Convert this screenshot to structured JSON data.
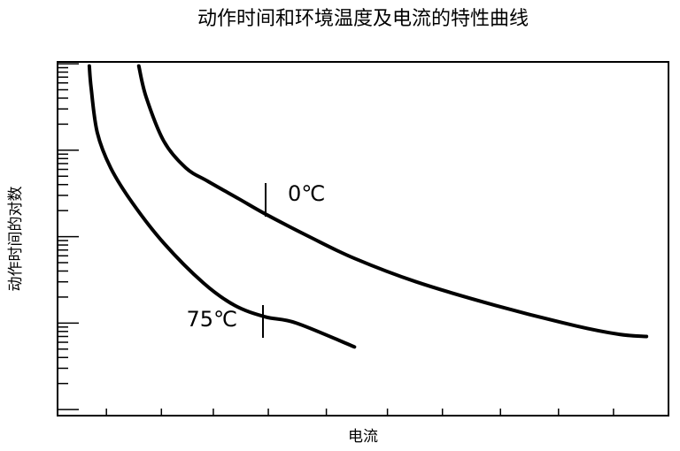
{
  "chart_data": {
    "type": "line",
    "title": "动作时间和环境温度及电流的特性曲线",
    "x_label": "电流",
    "y_label": "动作时间的对数",
    "xlim": [
      0,
      100
    ],
    "ylim": [
      0.85,
      10500
    ],
    "y_scale": "log",
    "xticks": [
      8,
      17,
      25.5,
      34.5,
      44,
      54,
      63,
      72.5,
      82,
      91
    ],
    "yticks": [
      1,
      2,
      3,
      4,
      5,
      6,
      7,
      8,
      9,
      10,
      20,
      30,
      40,
      50,
      60,
      70,
      80,
      90,
      100,
      200,
      300,
      400,
      500,
      600,
      700,
      800,
      900,
      1000,
      2000,
      3000,
      4000,
      5000,
      6000,
      7000,
      8000,
      9000,
      10000
    ],
    "series": [
      {
        "name": "0℃",
        "color": "#000000",
        "x": [
          13.3,
          14.5,
          17.4,
          21,
          24.6,
          29.7,
          34,
          41.3,
          48.6,
          58.7,
          71.7,
          84.8,
          92,
          96.4
        ],
        "values": [
          9420,
          4120,
          1270,
          624,
          437,
          273,
          183,
          99,
          56,
          30,
          16,
          9.3,
          7.4,
          7.0
        ]
      },
      {
        "name": "75℃",
        "color": "#000000",
        "x": [
          5.2,
          5.5,
          6.5,
          8.7,
          12.3,
          17.4,
          23.9,
          29,
          34,
          39.1,
          48.6
        ],
        "values": [
          9420,
          5220,
          1600,
          624,
          243,
          84,
          29,
          16,
          11.8,
          10,
          5.3
        ]
      }
    ]
  }
}
